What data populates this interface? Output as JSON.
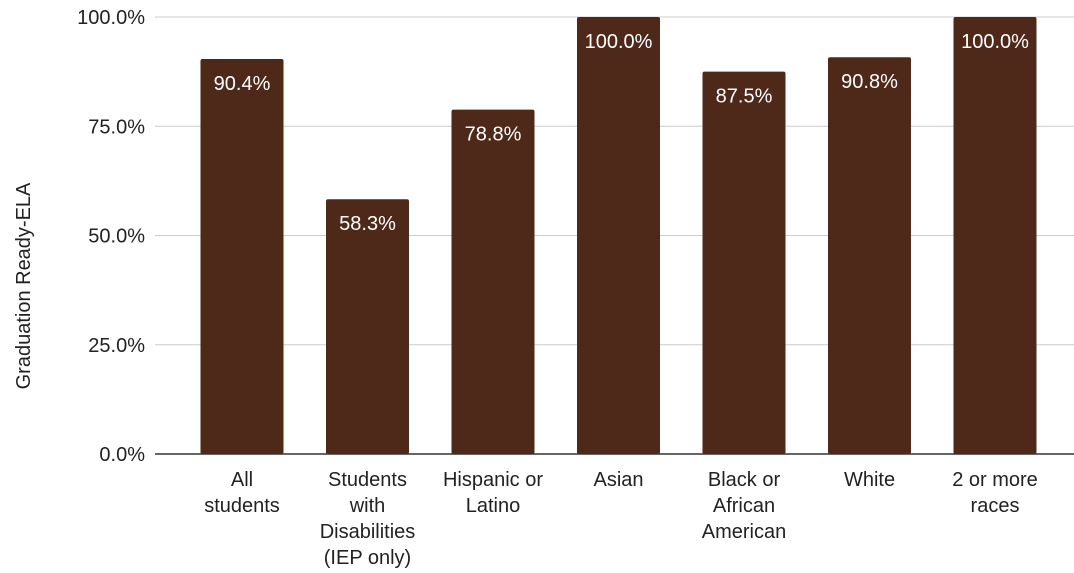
{
  "chart_data": {
    "type": "bar",
    "title": "",
    "xlabel": "",
    "ylabel": "Graduation Ready-ELA",
    "ylim": [
      0,
      100
    ],
    "yticks": [
      0,
      25,
      50,
      75,
      100
    ],
    "ytick_labels": [
      "0.0%",
      "25.0%",
      "50.0%",
      "75.0%",
      "100.0%"
    ],
    "categories": [
      [
        "All",
        "students"
      ],
      [
        "Students",
        "with",
        "Disabilities",
        "(IEP only)"
      ],
      [
        "Hispanic or",
        "Latino"
      ],
      [
        "Asian"
      ],
      [
        "Black or",
        "African",
        "American"
      ],
      [
        "White"
      ],
      [
        "2 or more",
        "races"
      ]
    ],
    "values": [
      90.4,
      58.3,
      78.8,
      100.0,
      87.5,
      90.8,
      100.0
    ],
    "data_labels": [
      "90.4%",
      "58.3%",
      "78.8%",
      "100.0%",
      "87.5%",
      "90.8%",
      "100.0%"
    ],
    "grid": true,
    "bar_color": "#4e2818"
  }
}
